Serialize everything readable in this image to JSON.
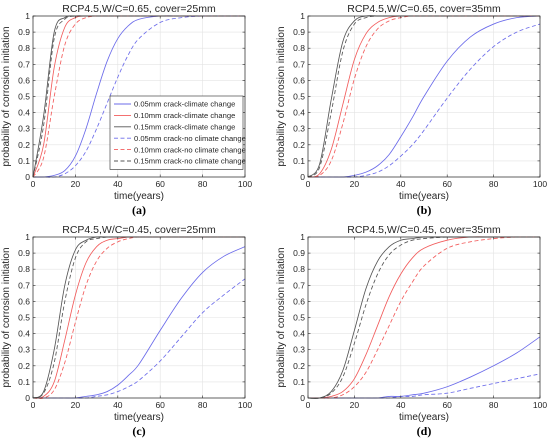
{
  "panel_labels": [
    "(a)",
    "(b)",
    "(c)",
    "(d)"
  ],
  "series_styles": [
    {
      "color": "#6b6bea",
      "dash": "solid"
    },
    {
      "color": "#f25c5c",
      "dash": "solid"
    },
    {
      "color": "#555555",
      "dash": "solid"
    },
    {
      "color": "#6b6bea",
      "dash": "dashed"
    },
    {
      "color": "#f25c5c",
      "dash": "dashed"
    },
    {
      "color": "#555555",
      "dash": "dashed"
    }
  ],
  "chart_data": [
    {
      "type": "line",
      "title": "RCP4.5,W/C=0.65, cover=25mm",
      "xlabel": "time(years)",
      "ylabel": "probability of corrosion initiation",
      "xlim": [
        0,
        100
      ],
      "ylim": [
        0,
        1
      ],
      "xticks": [
        0,
        20,
        40,
        60,
        80,
        100
      ],
      "yticks": [
        0,
        0.1,
        0.2,
        0.3,
        0.4,
        0.5,
        0.6,
        0.7,
        0.8,
        0.9,
        1
      ],
      "grid": true,
      "legend_position": "center-right",
      "x": [
        0,
        5,
        10,
        15,
        20,
        25,
        30,
        35,
        40,
        45,
        50,
        60,
        70,
        80,
        90,
        100
      ],
      "series": [
        {
          "name": "0.05mm crack-climate change",
          "values": [
            0,
            0.0,
            0.01,
            0.04,
            0.13,
            0.3,
            0.52,
            0.72,
            0.86,
            0.94,
            0.98,
            1.0,
            1.0,
            1.0,
            1.0,
            1.0
          ]
        },
        {
          "name": "0.10mm crack-climate change",
          "values": [
            0,
            0.2,
            0.68,
            0.93,
            0.99,
            1.0,
            1.0,
            1.0,
            1.0,
            1.0,
            1.0,
            1.0,
            1.0,
            1.0,
            1.0,
            1.0
          ]
        },
        {
          "name": "0.15mm crack-climate change",
          "values": [
            0,
            0.38,
            0.9,
            0.99,
            1.0,
            1.0,
            1.0,
            1.0,
            1.0,
            1.0,
            1.0,
            1.0,
            1.0,
            1.0,
            1.0,
            1.0
          ]
        },
        {
          "name": "0.05mm crack-no climate change",
          "values": [
            0,
            0.0,
            0.0,
            0.02,
            0.07,
            0.16,
            0.3,
            0.46,
            0.62,
            0.76,
            0.86,
            0.96,
            0.99,
            1.0,
            1.0,
            1.0
          ]
        },
        {
          "name": "0.10mm crack-no climate change",
          "values": [
            0,
            0.12,
            0.5,
            0.82,
            0.95,
            0.99,
            1.0,
            1.0,
            1.0,
            1.0,
            1.0,
            1.0,
            1.0,
            1.0,
            1.0,
            1.0
          ]
        },
        {
          "name": "0.15mm crack-no climate change",
          "values": [
            0,
            0.32,
            0.86,
            0.98,
            1.0,
            1.0,
            1.0,
            1.0,
            1.0,
            1.0,
            1.0,
            1.0,
            1.0,
            1.0,
            1.0,
            1.0
          ]
        }
      ]
    },
    {
      "type": "line",
      "title": "RCP4.5,W/C=0.65, cover=35mm",
      "xlabel": "time(years)",
      "ylabel": "probability of corrosion initiation",
      "xlim": [
        0,
        100
      ],
      "ylim": [
        0,
        1
      ],
      "xticks": [
        0,
        20,
        40,
        60,
        80,
        100
      ],
      "yticks": [
        0,
        0.1,
        0.2,
        0.3,
        0.4,
        0.5,
        0.6,
        0.7,
        0.8,
        0.9,
        1
      ],
      "grid": true,
      "x": [
        0,
        5,
        10,
        15,
        20,
        25,
        30,
        35,
        40,
        45,
        50,
        60,
        70,
        80,
        90,
        100
      ],
      "series": [
        {
          "name": "0.05mm crack-climate change",
          "values": [
            0,
            0.0,
            0.0,
            0.0,
            0.01,
            0.03,
            0.07,
            0.14,
            0.25,
            0.37,
            0.5,
            0.72,
            0.87,
            0.95,
            0.99,
            1.0
          ]
        },
        {
          "name": "0.10mm crack-climate change",
          "values": [
            0,
            0.02,
            0.17,
            0.45,
            0.73,
            0.89,
            0.96,
            0.99,
            1.0,
            1.0,
            1.0,
            1.0,
            1.0,
            1.0,
            1.0,
            1.0
          ]
        },
        {
          "name": "0.15mm crack-climate change",
          "values": [
            0,
            0.08,
            0.48,
            0.84,
            0.97,
            1.0,
            1.0,
            1.0,
            1.0,
            1.0,
            1.0,
            1.0,
            1.0,
            1.0,
            1.0,
            1.0
          ]
        },
        {
          "name": "0.05mm crack-no climate change",
          "values": [
            0,
            0.0,
            0.0,
            0.0,
            0.0,
            0.01,
            0.03,
            0.07,
            0.13,
            0.2,
            0.29,
            0.49,
            0.67,
            0.81,
            0.9,
            0.95
          ]
        },
        {
          "name": "0.10mm crack-no climate change",
          "values": [
            0,
            0.01,
            0.1,
            0.33,
            0.61,
            0.81,
            0.92,
            0.97,
            0.99,
            1.0,
            1.0,
            1.0,
            1.0,
            1.0,
            1.0,
            1.0
          ]
        },
        {
          "name": "0.15mm crack-no climate change",
          "values": [
            0,
            0.06,
            0.4,
            0.78,
            0.95,
            0.99,
            1.0,
            1.0,
            1.0,
            1.0,
            1.0,
            1.0,
            1.0,
            1.0,
            1.0,
            1.0
          ]
        }
      ]
    },
    {
      "type": "line",
      "title": "RCP4.5,W/C=0.45, cover=25mm",
      "xlabel": "time(years)",
      "ylabel": "probability of corrosion initiation",
      "xlim": [
        0,
        100
      ],
      "ylim": [
        0,
        1
      ],
      "xticks": [
        0,
        20,
        40,
        60,
        80,
        100
      ],
      "yticks": [
        0,
        0.1,
        0.2,
        0.3,
        0.4,
        0.5,
        0.6,
        0.7,
        0.8,
        0.9,
        1
      ],
      "grid": true,
      "x": [
        0,
        5,
        10,
        15,
        20,
        25,
        30,
        35,
        40,
        45,
        50,
        60,
        70,
        80,
        90,
        100
      ],
      "series": [
        {
          "name": "0.05mm crack-climate change",
          "values": [
            0,
            0.0,
            0.0,
            0.0,
            0.0,
            0.01,
            0.02,
            0.04,
            0.08,
            0.14,
            0.21,
            0.42,
            0.62,
            0.78,
            0.88,
            0.94
          ]
        },
        {
          "name": "0.10mm crack-climate change",
          "values": [
            0,
            0.01,
            0.1,
            0.36,
            0.64,
            0.84,
            0.94,
            0.98,
            0.99,
            1.0,
            1.0,
            1.0,
            1.0,
            1.0,
            1.0,
            1.0
          ]
        },
        {
          "name": "0.15mm crack-climate change",
          "values": [
            0,
            0.04,
            0.3,
            0.7,
            0.92,
            0.98,
            1.0,
            1.0,
            1.0,
            1.0,
            1.0,
            1.0,
            1.0,
            1.0,
            1.0,
            1.0
          ]
        },
        {
          "name": "0.05mm crack-no climate change",
          "values": [
            0,
            0.0,
            0.0,
            0.0,
            0.0,
            0.0,
            0.01,
            0.02,
            0.04,
            0.07,
            0.11,
            0.23,
            0.38,
            0.53,
            0.64,
            0.74
          ]
        },
        {
          "name": "0.10mm crack-no climate change",
          "values": [
            0,
            0.0,
            0.05,
            0.22,
            0.47,
            0.7,
            0.85,
            0.93,
            0.97,
            0.99,
            1.0,
            1.0,
            1.0,
            1.0,
            1.0,
            1.0
          ]
        },
        {
          "name": "0.15mm crack-no climate change",
          "values": [
            0,
            0.03,
            0.22,
            0.6,
            0.87,
            0.97,
            0.99,
            1.0,
            1.0,
            1.0,
            1.0,
            1.0,
            1.0,
            1.0,
            1.0,
            1.0
          ]
        }
      ]
    },
    {
      "type": "line",
      "title": "RCP4.5,W/C=0.45, cover=35mm",
      "xlabel": "time(years)",
      "ylabel": "probability of corrosion initiation",
      "xlim": [
        0,
        100
      ],
      "ylim": [
        0,
        1
      ],
      "xticks": [
        0,
        20,
        40,
        60,
        80,
        100
      ],
      "yticks": [
        0,
        0.1,
        0.2,
        0.3,
        0.4,
        0.5,
        0.6,
        0.7,
        0.8,
        0.9,
        1
      ],
      "grid": true,
      "x": [
        0,
        5,
        10,
        15,
        20,
        25,
        30,
        35,
        40,
        45,
        50,
        60,
        70,
        80,
        90,
        100
      ],
      "series": [
        {
          "name": "0.05mm crack-climate change",
          "values": [
            0,
            0.0,
            0.0,
            0.0,
            0.0,
            0.0,
            0.0,
            0.01,
            0.01,
            0.02,
            0.03,
            0.07,
            0.13,
            0.2,
            0.28,
            0.38
          ]
        },
        {
          "name": "0.10mm crack-climate change",
          "values": [
            0,
            0.0,
            0.01,
            0.04,
            0.12,
            0.27,
            0.45,
            0.63,
            0.77,
            0.87,
            0.93,
            0.98,
            1.0,
            1.0,
            1.0,
            1.0
          ]
        },
        {
          "name": "0.15mm crack-climate change",
          "values": [
            0,
            0.0,
            0.04,
            0.17,
            0.42,
            0.68,
            0.85,
            0.94,
            0.98,
            0.99,
            1.0,
            1.0,
            1.0,
            1.0,
            1.0,
            1.0
          ]
        },
        {
          "name": "0.05mm crack-no climate change",
          "values": [
            0,
            0.0,
            0.0,
            0.0,
            0.0,
            0.0,
            0.0,
            0.0,
            0.01,
            0.01,
            0.02,
            0.03,
            0.06,
            0.09,
            0.12,
            0.15
          ]
        },
        {
          "name": "0.10mm crack-no climate change",
          "values": [
            0,
            0.0,
            0.0,
            0.02,
            0.07,
            0.16,
            0.3,
            0.45,
            0.6,
            0.72,
            0.82,
            0.93,
            0.97,
            0.99,
            1.0,
            1.0
          ]
        },
        {
          "name": "0.15mm crack-no climate change",
          "values": [
            0,
            0.0,
            0.03,
            0.13,
            0.34,
            0.58,
            0.77,
            0.89,
            0.95,
            0.98,
            0.99,
            1.0,
            1.0,
            1.0,
            1.0,
            1.0
          ]
        }
      ]
    }
  ]
}
